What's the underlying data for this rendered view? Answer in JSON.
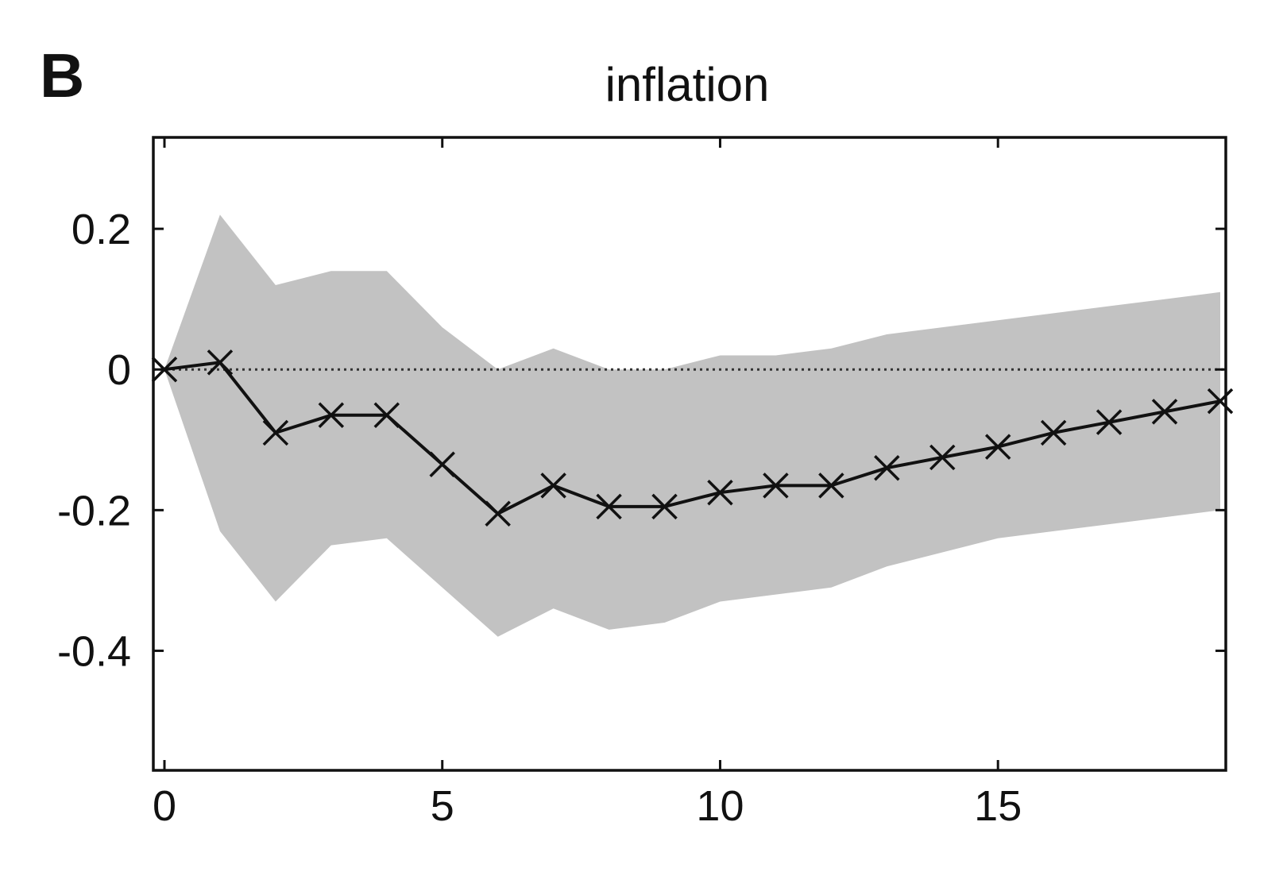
{
  "panel_label": "B",
  "chart_data": {
    "type": "line",
    "title": "inflation",
    "xlabel": "",
    "ylabel": "",
    "xlim": [
      -0.2,
      19.1
    ],
    "ylim": [
      -0.57,
      0.33
    ],
    "x_ticks": [
      0,
      5,
      10,
      15
    ],
    "x_tick_labels": [
      "0",
      "5",
      "10",
      "15"
    ],
    "y_ticks": [
      0.2,
      0,
      -0.2,
      -0.4
    ],
    "y_tick_labels": [
      "0.2",
      "0",
      "-0.2",
      "-0.4"
    ],
    "grid": false,
    "zero_line": true,
    "series": [
      {
        "type": "line",
        "marker": "x",
        "x": [
          0,
          1,
          2,
          3,
          4,
          5,
          6,
          7,
          8,
          9,
          10,
          11,
          12,
          13,
          14,
          15,
          16,
          17,
          18,
          19
        ],
        "values": [
          0,
          0.01,
          -0.09,
          -0.065,
          -0.065,
          -0.135,
          -0.205,
          -0.165,
          -0.195,
          -0.195,
          -0.175,
          -0.165,
          -0.165,
          -0.14,
          -0.125,
          -0.11,
          -0.09,
          -0.075,
          -0.06,
          -0.045
        ]
      }
    ],
    "band": {
      "x": [
        0,
        1,
        2,
        3,
        4,
        5,
        6,
        7,
        8,
        9,
        10,
        11,
        12,
        13,
        14,
        15,
        16,
        17,
        18,
        19
      ],
      "upper": [
        0,
        0.22,
        0.12,
        0.14,
        0.14,
        0.06,
        0,
        0.03,
        0,
        0,
        0.02,
        0.02,
        0.03,
        0.05,
        0.06,
        0.07,
        0.08,
        0.09,
        0.1,
        0.11
      ],
      "lower": [
        0,
        -0.23,
        -0.33,
        -0.25,
        -0.24,
        -0.31,
        -0.38,
        -0.34,
        -0.37,
        -0.36,
        -0.33,
        -0.32,
        -0.31,
        -0.28,
        -0.26,
        -0.24,
        -0.23,
        -0.22,
        -0.21,
        -0.2
      ]
    },
    "colors": {
      "band": "#c2c2c2",
      "line": "#111111",
      "axes": "#111111",
      "zero_line": "#333333"
    }
  }
}
